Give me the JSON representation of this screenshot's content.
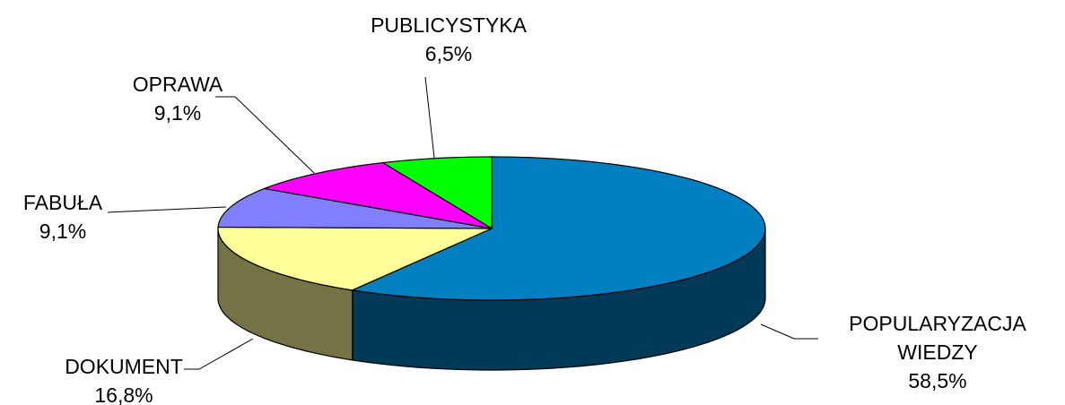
{
  "chart_data": {
    "type": "pie",
    "three_d": true,
    "categories": [
      "POPULARYZACJA WIEDZY",
      "DOKUMENT",
      "FABUŁA",
      "OPRAWA",
      "PUBLICYSTYKA"
    ],
    "values": [
      58.5,
      16.8,
      9.1,
      9.1,
      6.5
    ],
    "value_labels": [
      "58,5%",
      "16,8%",
      "9,1%",
      "9,1%",
      "6,5%"
    ],
    "colors": [
      "#0080c0",
      "#ffff99",
      "#8080ff",
      "#ff00ff",
      "#00ff00"
    ]
  }
}
